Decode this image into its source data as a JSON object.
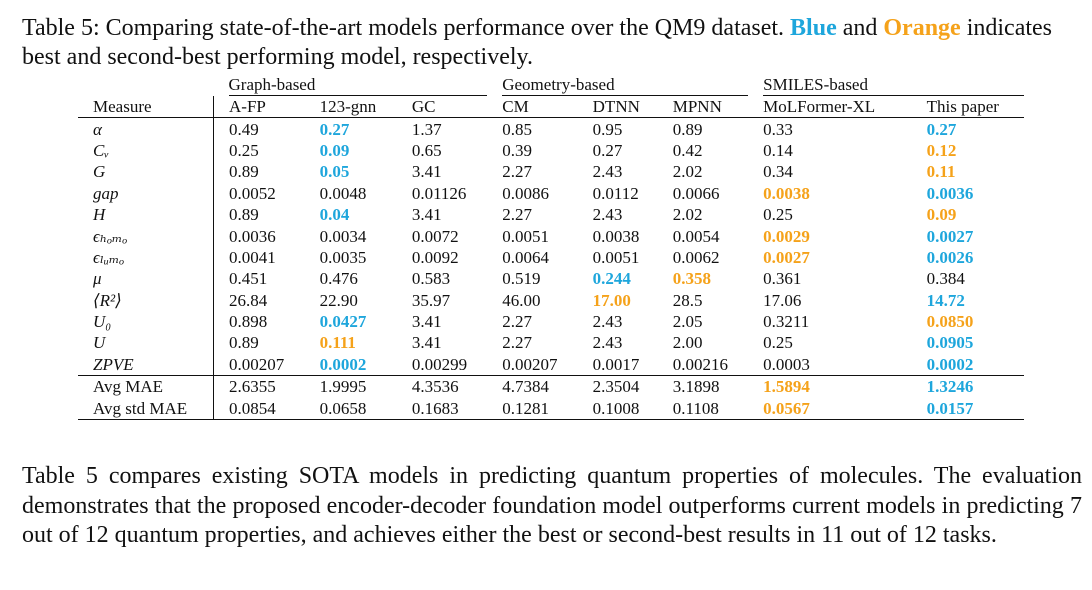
{
  "caption": {
    "prefix": "Table 5: Comparing state-of-the-art models performance over the QM9 dataset.",
    "blue_word": "Blue",
    "and_word": "and",
    "orange_word": "Orange",
    "suffix": "indicates best and second-best performing model, respectively."
  },
  "colors": {
    "best": "#1ea6dc",
    "second": "#f5a21a"
  },
  "table": {
    "groups": [
      "Graph-based",
      "Geometry-based",
      "SMILES-based"
    ],
    "columns": [
      "Measure",
      "A-FP",
      "123-gnn",
      "GC",
      "CM",
      "DTNN",
      "MPNN",
      "MoLFormer-XL",
      "This paper"
    ],
    "rows": [
      {
        "measure": "α",
        "cells": [
          "0.49",
          "0.27",
          "1.37",
          "0.85",
          "0.95",
          "0.89",
          "0.33",
          "0.27"
        ],
        "marks": [
          "",
          "best",
          "",
          "",
          "",
          "",
          "",
          "best"
        ]
      },
      {
        "measure": "Cᵥ",
        "cells": [
          "0.25",
          "0.09",
          "0.65",
          "0.39",
          "0.27",
          "0.42",
          "0.14",
          "0.12"
        ],
        "marks": [
          "",
          "best",
          "",
          "",
          "",
          "",
          "",
          "second"
        ]
      },
      {
        "measure": "G",
        "cells": [
          "0.89",
          "0.05",
          "3.41",
          "2.27",
          "2.43",
          "2.02",
          "0.34",
          "0.11"
        ],
        "marks": [
          "",
          "best",
          "",
          "",
          "",
          "",
          "",
          "second"
        ]
      },
      {
        "measure": "gap",
        "cells": [
          "0.0052",
          "0.0048",
          "0.01126",
          "0.0086",
          "0.0112",
          "0.0066",
          "0.0038",
          "0.0036"
        ],
        "marks": [
          "",
          "",
          "",
          "",
          "",
          "",
          "second",
          "best"
        ]
      },
      {
        "measure": "H",
        "cells": [
          "0.89",
          "0.04",
          "3.41",
          "2.27",
          "2.43",
          "2.02",
          "0.25",
          "0.09"
        ],
        "marks": [
          "",
          "best",
          "",
          "",
          "",
          "",
          "",
          "second"
        ]
      },
      {
        "measure": "ϵₕₒₘₒ",
        "cells": [
          "0.0036",
          "0.0034",
          "0.0072",
          "0.0051",
          "0.0038",
          "0.0054",
          "0.0029",
          "0.0027"
        ],
        "marks": [
          "",
          "",
          "",
          "",
          "",
          "",
          "second",
          "best"
        ]
      },
      {
        "measure": "ϵₗᵤₘₒ",
        "cells": [
          "0.0041",
          "0.0035",
          "0.0092",
          "0.0064",
          "0.0051",
          "0.0062",
          "0.0027",
          "0.0026"
        ],
        "marks": [
          "",
          "",
          "",
          "",
          "",
          "",
          "second",
          "best"
        ]
      },
      {
        "measure": "μ",
        "cells": [
          "0.451",
          "0.476",
          "0.583",
          "0.519",
          "0.244",
          "0.358",
          "0.361",
          "0.384"
        ],
        "marks": [
          "",
          "",
          "",
          "",
          "best",
          "second",
          "",
          ""
        ]
      },
      {
        "measure": "⟨R²⟩",
        "cells": [
          "26.84",
          "22.90",
          "35.97",
          "46.00",
          "17.00",
          "28.5",
          "17.06",
          "14.72"
        ],
        "marks": [
          "",
          "",
          "",
          "",
          "second",
          "",
          "",
          "best"
        ]
      },
      {
        "measure": "U₀",
        "cells": [
          "0.898",
          "0.0427",
          "3.41",
          "2.27",
          "2.43",
          "2.05",
          "0.3211",
          "0.0850"
        ],
        "marks": [
          "",
          "best",
          "",
          "",
          "",
          "",
          "",
          "second"
        ]
      },
      {
        "measure": "U",
        "cells": [
          "0.89",
          "0.111",
          "3.41",
          "2.27",
          "2.43",
          "2.00",
          "0.25",
          "0.0905"
        ],
        "marks": [
          "",
          "second",
          "",
          "",
          "",
          "",
          "",
          "best"
        ]
      },
      {
        "measure": "ZPVE",
        "cells": [
          "0.00207",
          "0.0002",
          "0.00299",
          "0.00207",
          "0.0017",
          "0.00216",
          "0.0003",
          "0.0002"
        ],
        "marks": [
          "",
          "best",
          "",
          "",
          "",
          "",
          "",
          "best"
        ]
      }
    ],
    "summary_rows": [
      {
        "measure": "Avg MAE",
        "cells": [
          "2.6355",
          "1.9995",
          "4.3536",
          "4.7384",
          "2.3504",
          "3.1898",
          "1.5894",
          "1.3246"
        ],
        "marks": [
          "",
          "",
          "",
          "",
          "",
          "",
          "second",
          "best"
        ]
      },
      {
        "measure": "Avg std MAE",
        "cells": [
          "0.0854",
          "0.0658",
          "0.1683",
          "0.1281",
          "0.1008",
          "0.1108",
          "0.0567",
          "0.0157"
        ],
        "marks": [
          "",
          "",
          "",
          "",
          "",
          "",
          "second",
          "best"
        ]
      }
    ]
  },
  "paragraph": "Table 5 compares existing SOTA models in predicting quantum properties of molecules. The evaluation demonstrates that the proposed encoder-decoder foundation model outperforms current models in predicting 7 out of 12 quantum properties, and achieves either the best or second-best results in 11 out of 12 tasks."
}
